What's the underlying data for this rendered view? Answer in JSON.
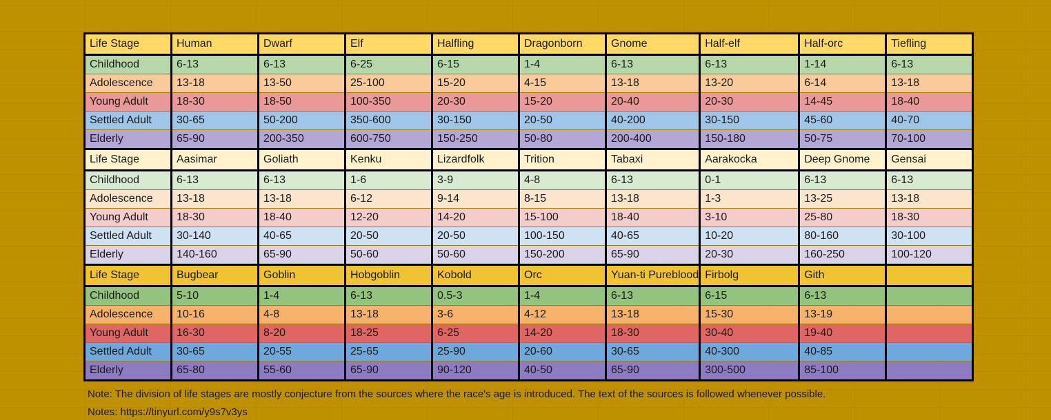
{
  "colors": {
    "background": "#bf9000",
    "group_palettes": [
      {
        "header": "#ffd966",
        "rows": [
          "#b6d7a8",
          "#f9cb9c",
          "#ea9999",
          "#9fc5e8",
          "#b4a7d6"
        ]
      },
      {
        "header": "#fff2cc",
        "rows": [
          "#d9ead3",
          "#fce5cd",
          "#f4cccc",
          "#cfe2f3",
          "#d9d2e9"
        ]
      },
      {
        "header": "#f1c232",
        "rows": [
          "#93c47d",
          "#f6b26b",
          "#e06666",
          "#6fa8dc",
          "#8e7cc3"
        ]
      }
    ]
  },
  "column_widths": [
    126,
    126,
    126,
    126,
    126,
    126,
    144,
    126,
    126
  ],
  "stage_labels": [
    "Childhood",
    "Adolescence",
    "Young Adult",
    "Settled Adult",
    "Elderly"
  ],
  "groups": [
    {
      "header": [
        "Life Stage",
        "Human",
        "Dwarf",
        "Elf",
        "Halfling",
        "Dragonborn",
        "Gnome",
        "Half-elf",
        "Half-orc",
        "Tiefling"
      ],
      "rows": [
        [
          "6-13",
          "6-13",
          "6-25",
          "6-15",
          "1-4",
          "6-13",
          "6-13",
          "1-14",
          "6-13"
        ],
        [
          "13-18",
          "13-50",
          "25-100",
          "15-20",
          "4-15",
          "13-18",
          "13-20",
          "6-14",
          "13-18"
        ],
        [
          "18-30",
          "18-50",
          "100-350",
          "20-30",
          "15-20",
          "20-40",
          "20-30",
          "14-45",
          "18-40"
        ],
        [
          "30-65",
          "50-200",
          "350-600",
          "30-150",
          "20-50",
          "40-200",
          "30-150",
          "45-60",
          "40-70"
        ],
        [
          "65-90",
          "200-350",
          "600-750",
          "150-250",
          "50-80",
          "200-400",
          "150-180",
          "50-75",
          "70-100"
        ]
      ]
    },
    {
      "header": [
        "Life Stage",
        "Aasimar",
        "Goliath",
        "Kenku",
        "Lizardfolk",
        "Trition",
        "Tabaxi",
        "Aarakocka",
        "Deep Gnome",
        "Gensai"
      ],
      "rows": [
        [
          "6-13",
          "6-13",
          "1-6",
          "3-9",
          "4-8",
          "6-13",
          "0-1",
          "6-13",
          "6-13"
        ],
        [
          "13-18",
          "13-18",
          "6-12",
          "9-14",
          "8-15",
          "13-18",
          "1-3",
          "13-25",
          "13-18"
        ],
        [
          "18-30",
          "18-40",
          "12-20",
          "14-20",
          "15-100",
          "18-40",
          "3-10",
          "25-80",
          "18-30"
        ],
        [
          "30-140",
          "40-65",
          "20-50",
          "20-50",
          "100-150",
          "40-65",
          "10-20",
          "80-160",
          "30-100"
        ],
        [
          "140-160",
          "65-90",
          "50-60",
          "50-60",
          "150-200",
          "65-90",
          "20-30",
          "160-250",
          "100-120"
        ]
      ]
    },
    {
      "header": [
        "Life Stage",
        "Bugbear",
        "Goblin",
        "Hobgoblin",
        "Kobold",
        "Orc",
        "Yuan-ti Pureblood",
        "Firbolg",
        "Gith",
        ""
      ],
      "rows": [
        [
          "5-10",
          "1-4",
          "6-13",
          "0.5-3",
          "1-4",
          "6-13",
          "6-15",
          "6-13",
          ""
        ],
        [
          "10-16",
          "4-8",
          "13-18",
          "3-6",
          "4-12",
          "13-18",
          "15-30",
          "13-19",
          ""
        ],
        [
          "16-30",
          "8-20",
          "18-25",
          "6-25",
          "14-20",
          "18-30",
          "30-40",
          "19-40",
          ""
        ],
        [
          "30-65",
          "20-55",
          "25-65",
          "25-90",
          "20-60",
          "30-65",
          "40-300",
          "40-85",
          ""
        ],
        [
          "65-80",
          "55-60",
          "65-90",
          "90-120",
          "40-50",
          "65-90",
          "300-500",
          "85-100",
          ""
        ]
      ]
    }
  ],
  "notes": [
    "Note: The division of life stages are mostly conjecture from the sources where the race's age is introduced. The text of the sources is followed whenever possible.",
    "Notes: https://tinyurl.com/y9s7v3ys"
  ]
}
